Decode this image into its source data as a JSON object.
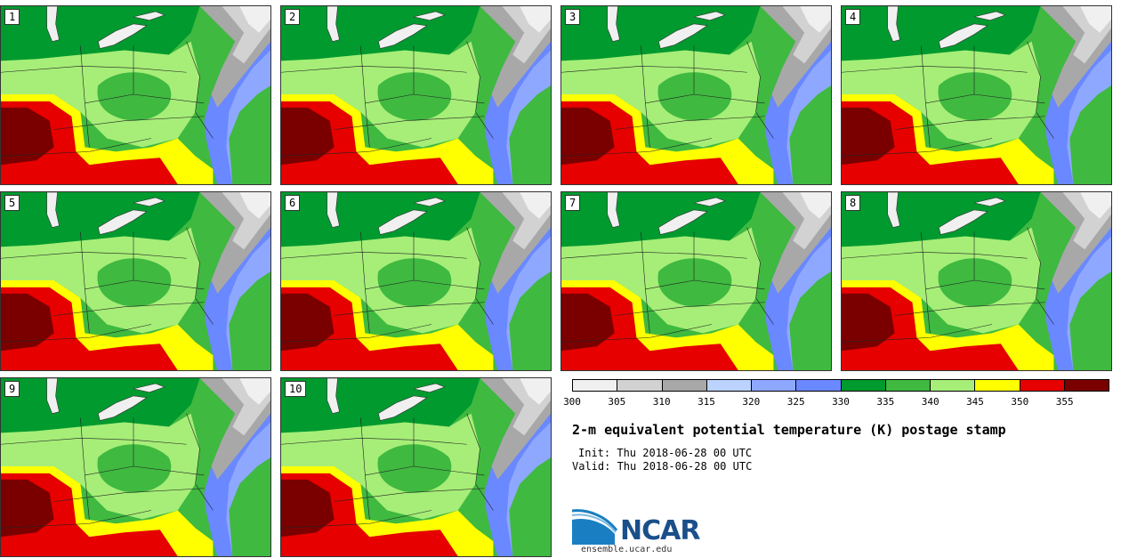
{
  "panels": [
    {
      "label": "1"
    },
    {
      "label": "2"
    },
    {
      "label": "3"
    },
    {
      "label": "4"
    },
    {
      "label": "5"
    },
    {
      "label": "6"
    },
    {
      "label": "7"
    },
    {
      "label": "8"
    },
    {
      "label": "9"
    },
    {
      "label": "10"
    }
  ],
  "colorbar": {
    "colors": [
      "#f0f0f0",
      "#d2d2d2",
      "#a8a8a8",
      "#bcd2ff",
      "#8fa8ff",
      "#6a88ff",
      "#009a2e",
      "#3fb940",
      "#a6ee78",
      "#ffff00",
      "#e60000",
      "#7a0000"
    ],
    "ticks": [
      "300",
      "305",
      "310",
      "315",
      "320",
      "325",
      "330",
      "335",
      "340",
      "345",
      "350",
      "355"
    ]
  },
  "title": "2-m equivalent potential temperature (K) postage stamp",
  "init": "Init: Thu 2018-06-28 00 UTC",
  "valid": "Valid: Thu 2018-06-28 00 UTC",
  "logo": {
    "text": "NCAR",
    "url": "ensemble.ucar.edu"
  }
}
